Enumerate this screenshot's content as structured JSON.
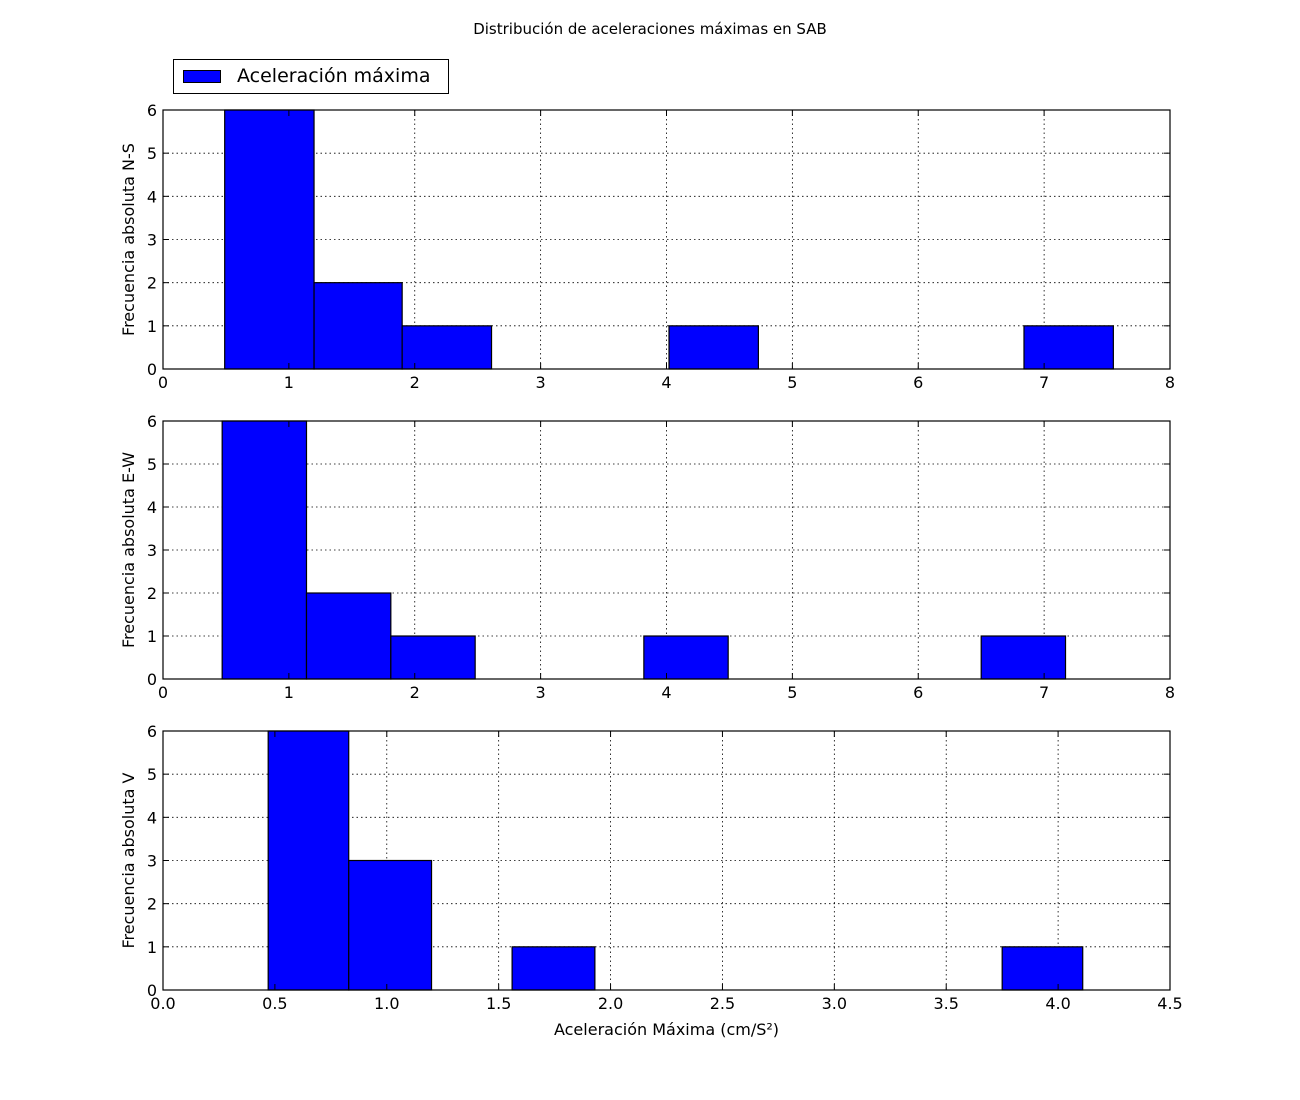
{
  "figure": {
    "title": "Distribución de aceleraciones máximas en SAB",
    "bar_color": "#0000ff",
    "legend": {
      "label": "Aceleración máxima",
      "placement": "above-top-left"
    }
  },
  "chart_data": [
    {
      "type": "bar",
      "ylabel": "Frecuencia absoluta N-S",
      "xlabel": "",
      "xlim": [
        0,
        8
      ],
      "ylim": [
        0,
        6
      ],
      "xticks": [
        "0",
        "1",
        "2",
        "3",
        "4",
        "5",
        "6",
        "7",
        "8"
      ],
      "yticks": [
        "0",
        "1",
        "2",
        "3",
        "4",
        "5",
        "6"
      ],
      "grid": true,
      "bins": [
        {
          "x0": 0.49,
          "x1": 1.2,
          "count": 6
        },
        {
          "x0": 1.2,
          "x1": 1.9,
          "count": 2
        },
        {
          "x0": 1.9,
          "x1": 2.61,
          "count": 1
        },
        {
          "x0": 2.61,
          "x1": 3.32,
          "count": 0
        },
        {
          "x0": 3.32,
          "x1": 4.02,
          "count": 0
        },
        {
          "x0": 4.02,
          "x1": 4.73,
          "count": 1
        },
        {
          "x0": 4.73,
          "x1": 5.43,
          "count": 0
        },
        {
          "x0": 5.43,
          "x1": 6.14,
          "count": 0
        },
        {
          "x0": 6.14,
          "x1": 6.84,
          "count": 0
        },
        {
          "x0": 6.84,
          "x1": 7.55,
          "count": 1
        }
      ]
    },
    {
      "type": "bar",
      "ylabel": "Frecuencia absoluta E-W",
      "xlabel": "",
      "xlim": [
        0,
        8
      ],
      "ylim": [
        0,
        6
      ],
      "xticks": [
        "0",
        "1",
        "2",
        "3",
        "4",
        "5",
        "6",
        "7",
        "8"
      ],
      "yticks": [
        "0",
        "1",
        "2",
        "3",
        "4",
        "5",
        "6"
      ],
      "grid": true,
      "bins": [
        {
          "x0": 0.47,
          "x1": 1.14,
          "count": 6
        },
        {
          "x0": 1.14,
          "x1": 1.81,
          "count": 2
        },
        {
          "x0": 1.81,
          "x1": 2.48,
          "count": 1
        },
        {
          "x0": 2.48,
          "x1": 3.15,
          "count": 0
        },
        {
          "x0": 3.15,
          "x1": 3.82,
          "count": 0
        },
        {
          "x0": 3.82,
          "x1": 4.49,
          "count": 1
        },
        {
          "x0": 4.49,
          "x1": 5.16,
          "count": 0
        },
        {
          "x0": 5.16,
          "x1": 5.83,
          "count": 0
        },
        {
          "x0": 5.83,
          "x1": 6.5,
          "count": 0
        },
        {
          "x0": 6.5,
          "x1": 7.17,
          "count": 1
        }
      ]
    },
    {
      "type": "bar",
      "ylabel": "Frecuencia absoluta V",
      "xlabel": "Aceleración Máxima (cm/S²)",
      "xlim": [
        0,
        4.5
      ],
      "ylim": [
        0,
        6
      ],
      "xticks": [
        "0.0",
        "0.5",
        "1.0",
        "1.5",
        "2.0",
        "2.5",
        "3.0",
        "3.5",
        "4.0",
        "4.5"
      ],
      "yticks": [
        "0",
        "1",
        "2",
        "3",
        "4",
        "5",
        "6"
      ],
      "grid": true,
      "bins": [
        {
          "x0": 0.47,
          "x1": 0.83,
          "count": 6
        },
        {
          "x0": 0.83,
          "x1": 1.2,
          "count": 3
        },
        {
          "x0": 1.2,
          "x1": 1.56,
          "count": 0
        },
        {
          "x0": 1.56,
          "x1": 1.93,
          "count": 1
        },
        {
          "x0": 1.93,
          "x1": 2.29,
          "count": 0
        },
        {
          "x0": 2.29,
          "x1": 2.66,
          "count": 0
        },
        {
          "x0": 2.66,
          "x1": 3.02,
          "count": 0
        },
        {
          "x0": 3.02,
          "x1": 3.38,
          "count": 0
        },
        {
          "x0": 3.38,
          "x1": 3.75,
          "count": 0
        },
        {
          "x0": 3.75,
          "x1": 4.11,
          "count": 1
        }
      ]
    }
  ]
}
